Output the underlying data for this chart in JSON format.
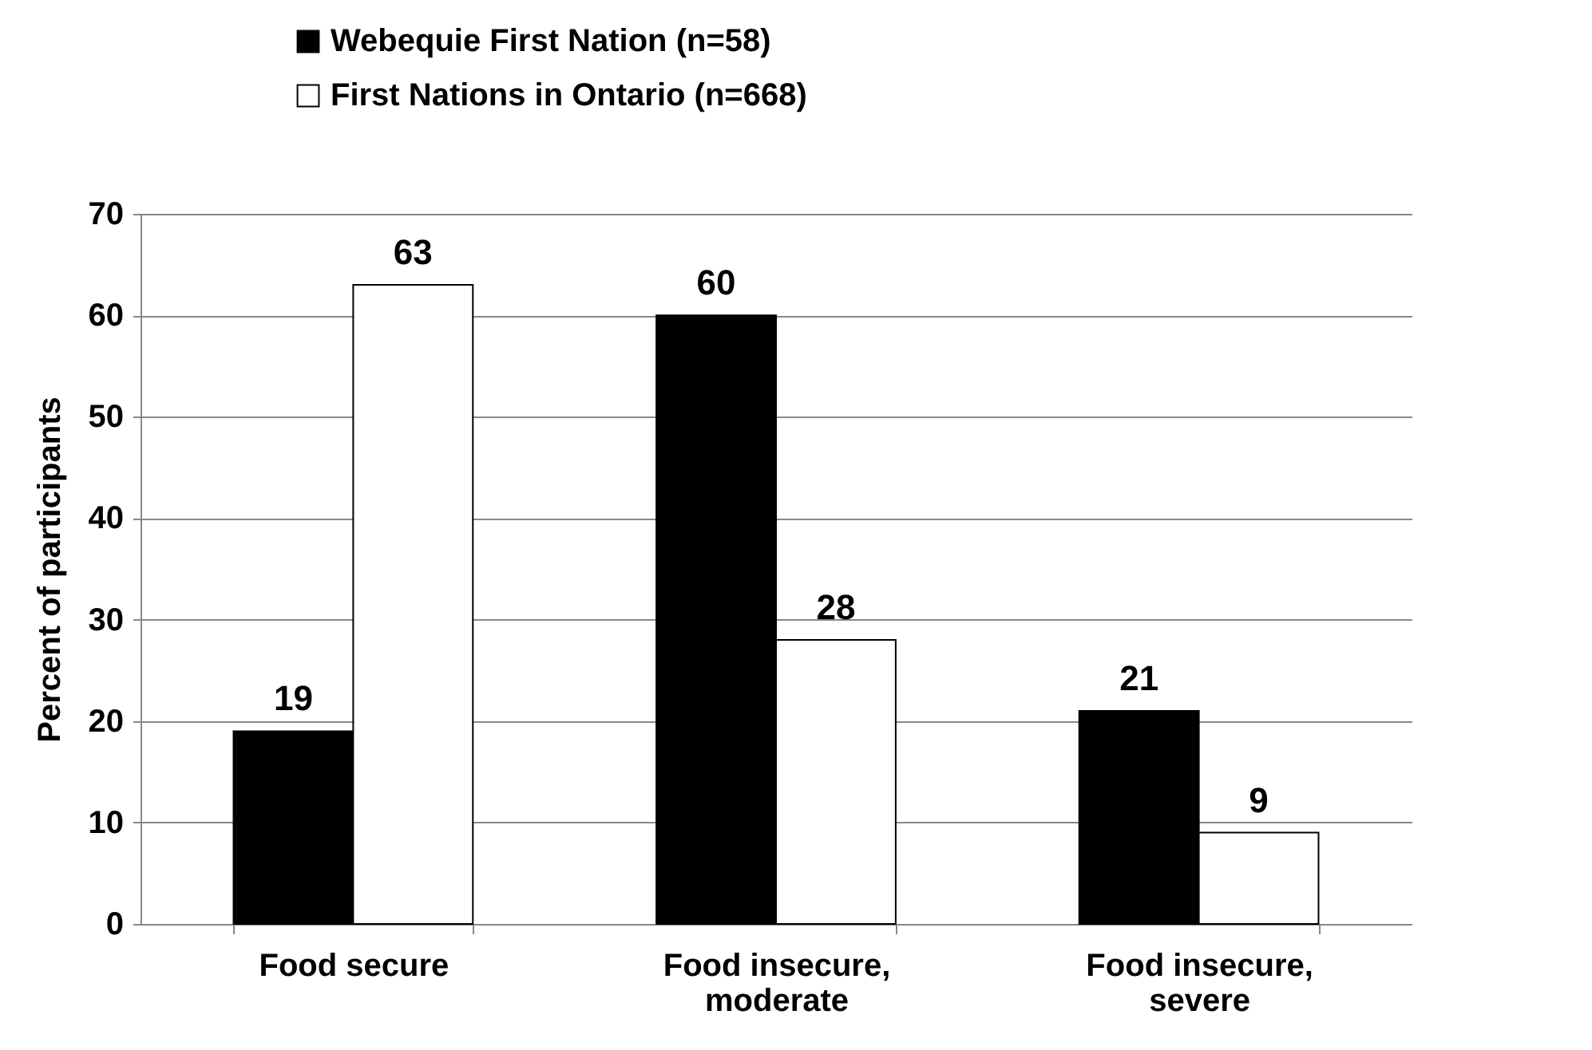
{
  "chart_data": {
    "type": "bar",
    "ylabel": "Percent of participants",
    "categories": [
      "Food secure",
      "Food insecure, moderate",
      "Food insecure, severe"
    ],
    "series": [
      {
        "name": "Webequie First Nation (n=58)",
        "color": "#000000",
        "values": [
          19,
          60,
          21
        ]
      },
      {
        "name": "First Nations in Ontario (n=668)",
        "color": "#ffffff",
        "values": [
          63,
          28,
          9
        ]
      }
    ],
    "ylim": [
      0,
      70
    ],
    "yticks": [
      0,
      10,
      20,
      30,
      40,
      50,
      60,
      70
    ],
    "grid": "y",
    "legend": "top",
    "data_labels": true
  }
}
